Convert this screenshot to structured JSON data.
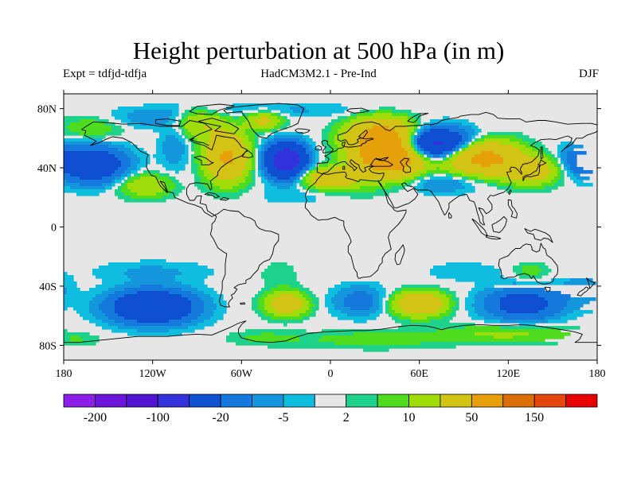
{
  "title": "Height perturbation at 500 hPa (in m)",
  "experiment": "Expt = tdfjd-tdfja",
  "model": "HadCM3M2.1 - Pre-Ind",
  "season": "DJF",
  "chart_data": {
    "type": "heatmap",
    "projection": "equirectangular",
    "title": "Height perturbation at 500 hPa (in m)",
    "units": "m",
    "lon_range": [
      -180,
      180
    ],
    "lat_range": [
      -90,
      90
    ],
    "x_ticks": [
      {
        "lon": -180,
        "label": "180"
      },
      {
        "lon": -120,
        "label": "120W"
      },
      {
        "lon": -60,
        "label": "60W"
      },
      {
        "lon": 0,
        "label": "0"
      },
      {
        "lon": 60,
        "label": "60E"
      },
      {
        "lon": 120,
        "label": "120E"
      },
      {
        "lon": 180,
        "label": "180"
      }
    ],
    "y_ticks": [
      {
        "lat": 80,
        "label": "80N"
      },
      {
        "lat": 40,
        "label": "40N"
      },
      {
        "lat": 0,
        "label": "0"
      },
      {
        "lat": -40,
        "label": "40S"
      },
      {
        "lat": -80,
        "label": "80S"
      }
    ],
    "colorbar": {
      "colors": [
        "#8c1ee6",
        "#6e14dc",
        "#5014d2",
        "#3232dc",
        "#0f50d2",
        "#1478dc",
        "#1496dc",
        "#0fbede",
        "#e6e6e6",
        "#1ed28c",
        "#50dc1e",
        "#a0dc0a",
        "#d2c314",
        "#e6a00a",
        "#dc6e0a",
        "#e6460f",
        "#e60000"
      ],
      "labels": [
        {
          "boundary": 1,
          "text": "-200"
        },
        {
          "boundary": 3,
          "text": "-100"
        },
        {
          "boundary": 5,
          "text": "-20"
        },
        {
          "boundary": 7,
          "text": "-5"
        },
        {
          "boundary": 9,
          "text": "2"
        },
        {
          "boundary": 11,
          "text": "10"
        },
        {
          "boundary": 13,
          "text": "50"
        },
        {
          "boundary": 15,
          "text": "150"
        }
      ]
    },
    "anomalies": [
      {
        "lon": 40,
        "lat": 48,
        "value": 95,
        "slon": 22,
        "slat": 13
      },
      {
        "lon": 35,
        "lat": 62,
        "value": 60,
        "slon": 22,
        "slat": 11
      },
      {
        "lon": 0,
        "lat": 33,
        "value": 40,
        "slon": 18,
        "slat": 7
      },
      {
        "lon": -70,
        "lat": 47,
        "value": 55,
        "slon": 14,
        "slat": 16
      },
      {
        "lon": -90,
        "lat": 70,
        "value": 20,
        "slon": 18,
        "slat": 10
      },
      {
        "lon": 102,
        "lat": 47,
        "value": 65,
        "slon": 24,
        "slat": 11
      },
      {
        "lon": 135,
        "lat": 38,
        "value": 35,
        "slon": 18,
        "slat": 9
      },
      {
        "lon": -160,
        "lat": 67,
        "value": 10,
        "slon": 22,
        "slat": 8
      },
      {
        "lon": -45,
        "lat": 72,
        "value": 25,
        "slon": 12,
        "slat": 6
      },
      {
        "lon": -125,
        "lat": 28,
        "value": 20,
        "slon": 18,
        "slat": 8
      },
      {
        "lon": -30,
        "lat": 45,
        "value": -80,
        "slon": 13,
        "slat": 11
      },
      {
        "lon": 68,
        "lat": 56,
        "value": -70,
        "slon": 26,
        "slat": 10
      },
      {
        "lon": -160,
        "lat": 42,
        "value": -40,
        "slon": 22,
        "slat": 12
      },
      {
        "lon": 170,
        "lat": 45,
        "value": -20,
        "slon": 15,
        "slat": 10
      },
      {
        "lon": 75,
        "lat": 30,
        "value": -12,
        "slon": 25,
        "slat": 7
      },
      {
        "lon": -105,
        "lat": 58,
        "value": -10,
        "slon": 10,
        "slat": 20
      },
      {
        "lon": -125,
        "lat": 73,
        "value": -8,
        "slon": 28,
        "slat": 7
      },
      {
        "lon": -40,
        "lat": 79,
        "value": -6,
        "slon": 70,
        "slat": 5
      },
      {
        "lon": -25,
        "lat": 21,
        "value": -4,
        "slon": 25,
        "slat": 6
      },
      {
        "lon": 20,
        "lat": 24,
        "value": 3,
        "slon": 15,
        "slat": 5
      },
      {
        "lon": -30,
        "lat": -52,
        "value": 35,
        "slon": 14,
        "slat": 8
      },
      {
        "lon": 60,
        "lat": -52,
        "value": 45,
        "slon": 17,
        "slat": 8
      },
      {
        "lon": 135,
        "lat": -30,
        "value": 8,
        "slon": 12,
        "slat": 6
      },
      {
        "lon": -35,
        "lat": -32,
        "value": 5,
        "slon": 12,
        "slat": 8
      },
      {
        "lon": -120,
        "lat": -54,
        "value": -50,
        "slon": 28,
        "slat": 11
      },
      {
        "lon": 130,
        "lat": -52,
        "value": -30,
        "slon": 26,
        "slat": 11
      },
      {
        "lon": 20,
        "lat": -50,
        "value": -15,
        "slon": 18,
        "slat": 10
      },
      {
        "lon": -120,
        "lat": -30,
        "value": -6,
        "slon": 38,
        "slat": 7
      },
      {
        "lon": 90,
        "lat": -30,
        "value": -5,
        "slon": 25,
        "slat": 6
      },
      {
        "lon": 170,
        "lat": -42,
        "value": -8,
        "slon": 15,
        "slat": 10
      },
      {
        "lon": 30,
        "lat": -76,
        "value": 8,
        "slon": 50,
        "slat": 6
      },
      {
        "lon": 120,
        "lat": -72,
        "value": 12,
        "slon": 45,
        "slat": 6
      },
      {
        "lon": -170,
        "lat": -76,
        "value": 5,
        "slon": 15,
        "slat": 4
      },
      {
        "lon": -45,
        "lat": -75,
        "value": 6,
        "slon": 25,
        "slat": 5
      }
    ]
  }
}
